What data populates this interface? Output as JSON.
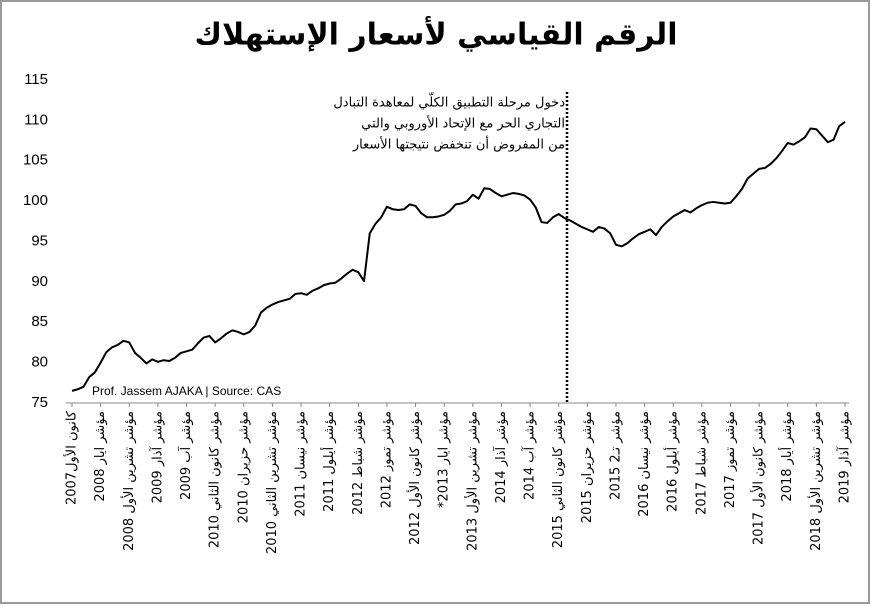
{
  "chart_data": {
    "type": "line",
    "title": "الرقم القياسي لأسعار الإستهلاك",
    "source": "Prof. Jassem AJAKA | Source: CAS",
    "annotation": [
      "دخول مرحلة التطبيق الكلّي لمعاهدة التبادل",
      "التجاري الحر مع الإتحاد الأوروبي والتي",
      "من المفروض أن تنخفض نتيجتها الأسعار"
    ],
    "categories": [
      "كانون الأول2007",
      null,
      null,
      null,
      null,
      "مؤشر ايار 2008",
      null,
      null,
      null,
      null,
      "مؤشر تشرين الأول 2008",
      null,
      null,
      null,
      null,
      "مؤشر آذار 2009",
      null,
      null,
      null,
      null,
      "مؤشر آب 2009",
      null,
      null,
      null,
      null,
      "مؤشر كانون الثاني 2010",
      null,
      null,
      null,
      null,
      "مؤشر حزيران 2010",
      null,
      null,
      null,
      null,
      "مؤشر تشرين الثاني 2010",
      null,
      null,
      null,
      null,
      "مؤشر نيسان 2011",
      null,
      null,
      null,
      null,
      "مؤشر أيلول 2011",
      null,
      null,
      null,
      null,
      "مؤشر شباط 2012",
      null,
      null,
      null,
      null,
      "مؤشر تموز 2012",
      null,
      null,
      null,
      null,
      "مؤشر كانون الأول 2012",
      null,
      null,
      null,
      null,
      "مؤشر ايار 2013*",
      null,
      null,
      null,
      null,
      "مؤشر تشرين الأول 2013",
      null,
      null,
      null,
      null,
      "مؤشر آذار 2014",
      null,
      null,
      null,
      null,
      "مؤشر آب 2014",
      null,
      null,
      null,
      null,
      "مؤشر كانون الثاني 2015",
      null,
      null,
      null,
      null,
      "مؤشر حزيران 2015",
      null,
      null,
      null,
      null,
      "مؤشر تـ2 2015",
      null,
      null,
      null,
      null,
      "مؤشر نيسان 2016",
      null,
      null,
      null,
      null,
      "مؤشر أيلول 2016",
      null,
      null,
      null,
      null,
      "مؤشر شباط 2017",
      null,
      null,
      null,
      null,
      "مؤشر تموز 2017",
      null,
      null,
      null,
      null,
      "مؤشر كانون الأول 2017",
      null,
      null,
      null,
      null,
      "مؤشر أيار 2018",
      null,
      null,
      null,
      null,
      "مؤشر تشرين الأول 2018",
      null,
      null,
      null,
      null,
      "مؤشر آذار 2019"
    ],
    "values": [
      76.5,
      76.7,
      77.0,
      78.2,
      78.8,
      80.0,
      81.3,
      81.9,
      82.2,
      82.7,
      82.5,
      81.2,
      80.6,
      79.9,
      80.4,
      80.1,
      80.3,
      80.2,
      80.6,
      81.2,
      81.4,
      81.6,
      82.4,
      83.1,
      83.3,
      82.5,
      83.0,
      83.6,
      84.0,
      83.8,
      83.5,
      83.8,
      84.6,
      86.2,
      86.8,
      87.2,
      87.5,
      87.7,
      87.9,
      88.5,
      88.6,
      88.4,
      88.9,
      89.2,
      89.6,
      89.8,
      89.9,
      90.4,
      91.0,
      91.5,
      91.2,
      90.1,
      96.0,
      97.2,
      98.0,
      99.3,
      99.0,
      98.9,
      99.0,
      99.6,
      99.4,
      98.5,
      98.0,
      98.0,
      98.1,
      98.3,
      98.8,
      99.6,
      99.7,
      100.0,
      100.8,
      100.3,
      101.6,
      101.5,
      101.0,
      100.6,
      100.8,
      101.0,
      100.9,
      100.7,
      100.2,
      99.2,
      97.4,
      97.3,
      98.0,
      98.4,
      97.9,
      97.6,
      97.2,
      96.8,
      96.5,
      96.2,
      96.8,
      96.6,
      96.0,
      94.6,
      94.4,
      94.8,
      95.4,
      95.9,
      96.2,
      96.5,
      95.8,
      96.8,
      97.5,
      98.1,
      98.5,
      98.9,
      98.6,
      99.1,
      99.5,
      99.8,
      99.9,
      99.8,
      99.7,
      99.8,
      100.6,
      101.5,
      102.8,
      103.4,
      104.0,
      104.1,
      104.6,
      105.3,
      106.2,
      107.2,
      107.0,
      107.4,
      107.9,
      109.0,
      108.9,
      108.1,
      107.3,
      107.6,
      109.3,
      109.8
    ],
    "color": "#000000",
    "ylim": [
      75,
      115
    ],
    "yticks": [
      75,
      80,
      85,
      90,
      95,
      100,
      105,
      110,
      115
    ],
    "grid": false
  }
}
